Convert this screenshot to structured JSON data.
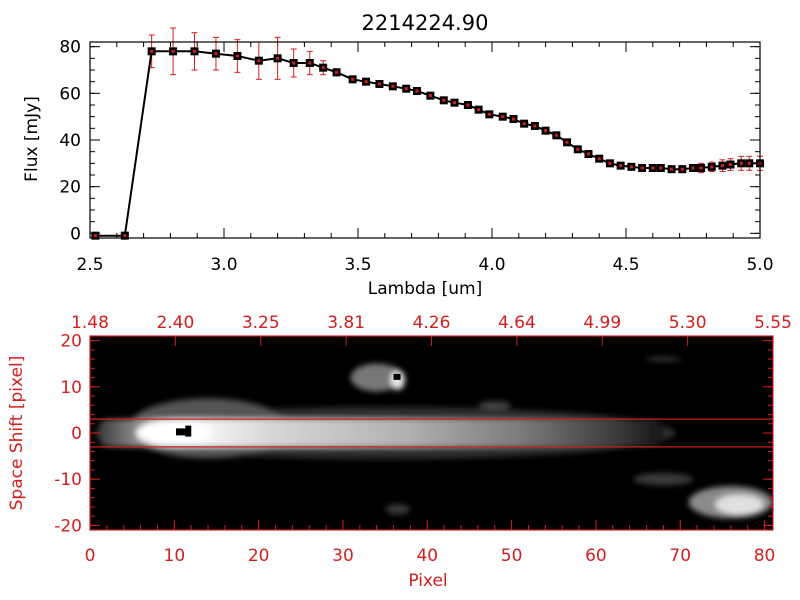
{
  "colors": {
    "background": "#ffffff",
    "foreground": "#000000",
    "accent_red": "#d11f1f",
    "image_background": "#000000"
  },
  "chart_data": [
    {
      "type": "line",
      "title": "2214224.90",
      "xlabel": "Lambda [um]",
      "ylabel": "Flux [mJy]",
      "xlim": [
        2.5,
        5.0
      ],
      "ylim": [
        -2,
        82
      ],
      "x_ticks": [
        "2.5",
        "3.0",
        "3.5",
        "4.0",
        "4.5",
        "5.0"
      ],
      "y_ticks": [
        "0",
        "20",
        "40",
        "60",
        "80"
      ],
      "grid": false,
      "line_color": "#000000",
      "marker": "square",
      "marker_color": "#000000",
      "marker_inner_color": "#d11f1f",
      "errorbar_color": "#d11f1f",
      "series": [
        {
          "x": [
            2.52,
            2.63,
            2.73,
            2.81,
            2.89,
            2.97,
            3.05,
            3.13,
            3.2,
            3.26,
            3.32,
            3.37,
            3.42,
            3.48,
            3.53,
            3.58,
            3.63,
            3.68,
            3.72,
            3.77,
            3.82,
            3.86,
            3.91,
            3.95,
            3.99,
            4.04,
            4.08,
            4.12,
            4.16,
            4.2,
            4.24,
            4.28,
            4.32,
            4.36,
            4.4,
            4.44,
            4.48,
            4.52,
            4.56,
            4.6,
            4.63,
            4.67,
            4.71,
            4.75,
            4.78,
            4.82,
            4.86,
            4.89,
            4.93,
            4.96,
            5.0
          ],
          "y": [
            -1,
            -1,
            78,
            78,
            78,
            77,
            76,
            74,
            75,
            73,
            73,
            71,
            69,
            66,
            65,
            64,
            63,
            62,
            61,
            59,
            57,
            56,
            55,
            53,
            51,
            50,
            49,
            47,
            46,
            44,
            42,
            39,
            36,
            34,
            32,
            30,
            29,
            28.5,
            28,
            28,
            28,
            27.5,
            27.5,
            28,
            28,
            28.5,
            29,
            29.5,
            30,
            30,
            30
          ],
          "yerr": [
            0,
            0,
            7,
            10,
            8,
            7,
            7,
            8,
            9,
            6,
            5,
            3,
            1.5,
            1,
            1,
            0.5,
            0.5,
            0.5,
            0.5,
            0.5,
            0.5,
            0.5,
            0.5,
            0.5,
            0.5,
            0.5,
            0.5,
            0.5,
            0.5,
            0.5,
            0.5,
            0.5,
            1,
            1,
            1,
            1,
            1,
            1,
            1,
            1,
            1,
            1,
            1.5,
            1.5,
            2,
            2,
            2.5,
            2.5,
            3,
            3,
            3
          ]
        }
      ]
    },
    {
      "type": "heatmap",
      "xlabel": "Pixel",
      "ylabel": "Space Shift [pixel]",
      "xlim": [
        0,
        81
      ],
      "ylim": [
        -21,
        21
      ],
      "x_ticks": [
        "0",
        "10",
        "20",
        "30",
        "40",
        "50",
        "60",
        "70",
        "80"
      ],
      "y_ticks": [
        "-20",
        "-10",
        "0",
        "10",
        "20"
      ],
      "top_axis_ticks": [
        "1.48",
        "2.40",
        "3.25",
        "3.81",
        "4.26",
        "4.64",
        "4.99",
        "5.30",
        "5.55"
      ],
      "extraction_aperture": [
        -3,
        3
      ],
      "colormap": "grayscale",
      "axis_color": "#d11f1f"
    }
  ]
}
